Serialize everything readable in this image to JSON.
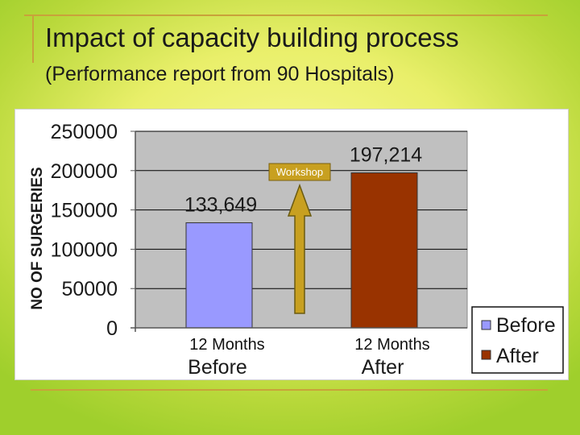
{
  "header": {
    "title": "Impact of capacity building process",
    "subtitle": "(Performance report from 90 Hospitals)"
  },
  "chart_data": {
    "type": "bar",
    "ylabel": "NO OF SURGERIES",
    "ylim": [
      0,
      250000
    ],
    "y_ticks": [
      "0",
      "50000",
      "100000",
      "150000",
      "200000",
      "250000"
    ],
    "categories": [
      "Before",
      "After"
    ],
    "period_labels": [
      "12 Months",
      "12 Months"
    ],
    "values": [
      133649,
      197214
    ],
    "data_labels": [
      "133,649",
      "197,214"
    ],
    "series": [
      {
        "name": "Before",
        "values": [
          133649,
          null
        ],
        "color": "#9999ff"
      },
      {
        "name": "After",
        "values": [
          null,
          197214
        ],
        "color": "#993300"
      }
    ],
    "annotation": "Workshop",
    "annotation_color": "#c8a020",
    "plot_bg": "#c0c0c0",
    "grid": true,
    "legend_position": "bottom-right"
  }
}
